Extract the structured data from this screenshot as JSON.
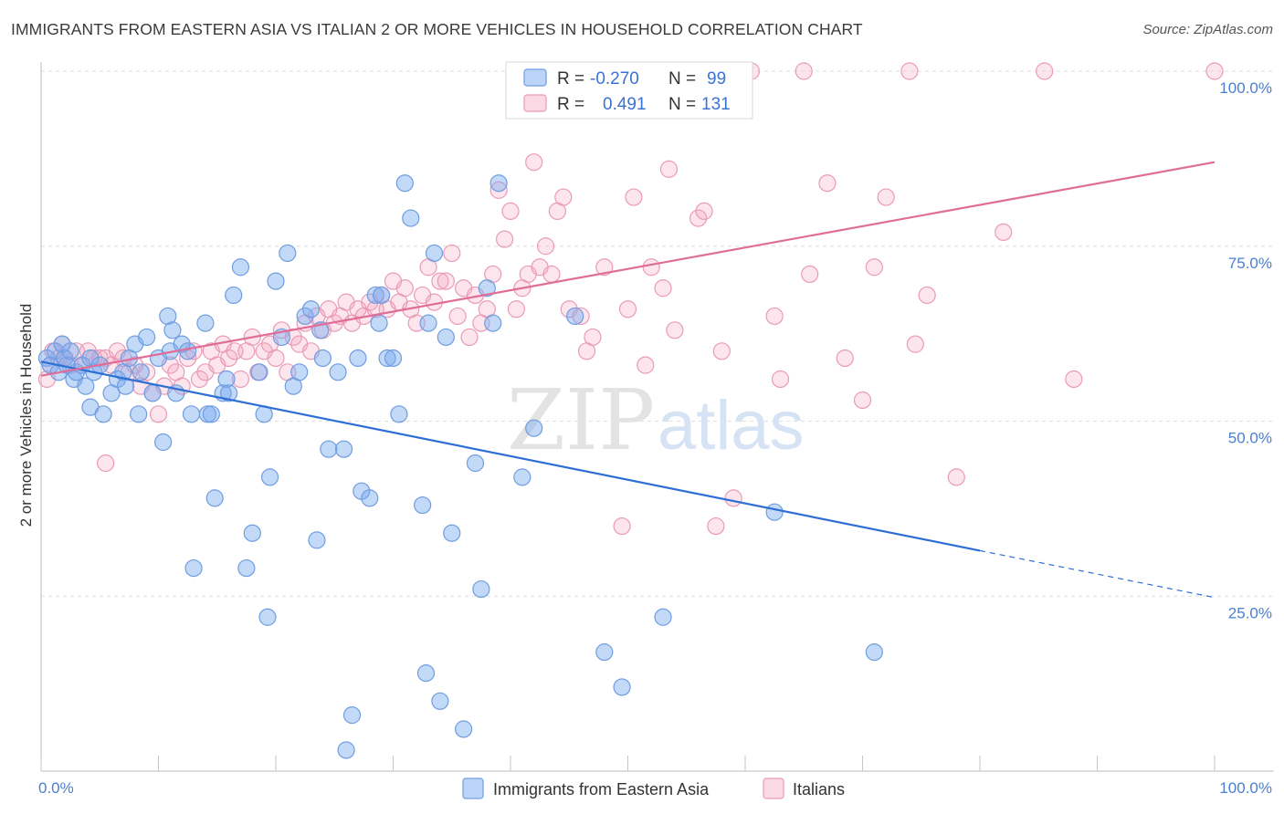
{
  "header": {
    "title": "IMMIGRANTS FROM EASTERN ASIA VS ITALIAN 2 OR MORE VEHICLES IN HOUSEHOLD CORRELATION CHART",
    "source": "Source: ZipAtlas.com"
  },
  "watermark": {
    "zip": "ZIP",
    "atlas": "atlas"
  },
  "legend_stats": [
    {
      "r_label": "R =",
      "r_value": "-0.270",
      "n_label": "N =",
      "n_value": "99",
      "color": "#7aaaf0"
    },
    {
      "r_label": "R =",
      "r_value": "0.491",
      "n_label": "N =",
      "n_value": "131",
      "color": "#f4a0bc"
    }
  ],
  "chart_data": {
    "type": "scatter",
    "ylabel": "2 or more Vehicles in Household",
    "xlim": [
      0,
      100
    ],
    "ylim": [
      0,
      100
    ],
    "x_tick_labels": [
      "0.0%",
      "100.0%"
    ],
    "y_ticks": [
      25,
      50,
      75,
      100
    ],
    "y_tick_labels": [
      "25.0%",
      "50.0%",
      "75.0%",
      "100.0%"
    ],
    "grid": true,
    "legend_position": "bottom-center",
    "series": [
      {
        "name": "Immigrants from Eastern Asia",
        "color": "#7aaaf0",
        "line_color": "#2e6fd4",
        "trend": {
          "x0": 0,
          "y0": 58.5,
          "x1": 80,
          "y1": 31.5,
          "dash_to": 100,
          "dash_y": 24.8
        },
        "points": [
          [
            0.5,
            59
          ],
          [
            0.8,
            58
          ],
          [
            1.2,
            60
          ],
          [
            1.5,
            57
          ],
          [
            1.8,
            61
          ],
          [
            2.0,
            59
          ],
          [
            2.2,
            58
          ],
          [
            2.5,
            60
          ],
          [
            2.8,
            56
          ],
          [
            3.0,
            57
          ],
          [
            3.5,
            58
          ],
          [
            3.8,
            55
          ],
          [
            4.2,
            59
          ],
          [
            4.5,
            57
          ],
          [
            5.0,
            58
          ],
          [
            4.2,
            52
          ],
          [
            5.3,
            51
          ],
          [
            6.0,
            54
          ],
          [
            6.5,
            56
          ],
          [
            7.0,
            57
          ],
          [
            7.5,
            59
          ],
          [
            7.2,
            55
          ],
          [
            8.0,
            61
          ],
          [
            8.3,
            51
          ],
          [
            8.5,
            57
          ],
          [
            9.0,
            62
          ],
          [
            9.5,
            54
          ],
          [
            10.0,
            59
          ],
          [
            10.4,
            47
          ],
          [
            10.8,
            65
          ],
          [
            11.2,
            63
          ],
          [
            11.0,
            60
          ],
          [
            11.5,
            54
          ],
          [
            12.0,
            61
          ],
          [
            12.5,
            60
          ],
          [
            12.8,
            51
          ],
          [
            13.0,
            29
          ],
          [
            14.0,
            64
          ],
          [
            14.2,
            51
          ],
          [
            14.5,
            51
          ],
          [
            14.8,
            39
          ],
          [
            15.5,
            54
          ],
          [
            15.8,
            56
          ],
          [
            16.0,
            54
          ],
          [
            16.4,
            68
          ],
          [
            17.0,
            72
          ],
          [
            17.5,
            29
          ],
          [
            18.0,
            34
          ],
          [
            18.6,
            57
          ],
          [
            19.0,
            51
          ],
          [
            19.3,
            22
          ],
          [
            19.5,
            42
          ],
          [
            20.0,
            70
          ],
          [
            20.5,
            62
          ],
          [
            21.0,
            74
          ],
          [
            21.5,
            55
          ],
          [
            22.0,
            57
          ],
          [
            22.5,
            65
          ],
          [
            23.0,
            66
          ],
          [
            23.5,
            33
          ],
          [
            23.8,
            63
          ],
          [
            24.0,
            59
          ],
          [
            24.5,
            46
          ],
          [
            25.3,
            57
          ],
          [
            25.8,
            46
          ],
          [
            26.0,
            3
          ],
          [
            26.5,
            8
          ],
          [
            27.0,
            59
          ],
          [
            27.3,
            40
          ],
          [
            28.0,
            39
          ],
          [
            28.5,
            68
          ],
          [
            28.8,
            64
          ],
          [
            29.0,
            68
          ],
          [
            29.5,
            59
          ],
          [
            30.0,
            59
          ],
          [
            30.5,
            51
          ],
          [
            31.0,
            84
          ],
          [
            31.5,
            79
          ],
          [
            32.5,
            38
          ],
          [
            32.8,
            14
          ],
          [
            33.0,
            64
          ],
          [
            33.5,
            74
          ],
          [
            34.0,
            10
          ],
          [
            34.5,
            62
          ],
          [
            35.0,
            34
          ],
          [
            36.0,
            6
          ],
          [
            37.0,
            44
          ],
          [
            37.5,
            26
          ],
          [
            38.0,
            69
          ],
          [
            38.5,
            64
          ],
          [
            39.0,
            84
          ],
          [
            41.0,
            42
          ],
          [
            42.0,
            49
          ],
          [
            45.5,
            65
          ],
          [
            48.0,
            17
          ],
          [
            49.5,
            12
          ],
          [
            53.0,
            22
          ],
          [
            62.5,
            37
          ],
          [
            71.0,
            17
          ]
        ]
      },
      {
        "name": "Italians",
        "color": "#f4a0bc",
        "line_color": "#e06c98",
        "trend": {
          "x0": 0,
          "y0": 56.5,
          "x1": 100,
          "y1": 87
        },
        "points": [
          [
            0.5,
            56
          ],
          [
            0.8,
            58
          ],
          [
            1.0,
            60
          ],
          [
            1.5,
            59
          ],
          [
            1.8,
            61
          ],
          [
            2.0,
            59
          ],
          [
            2.5,
            58
          ],
          [
            3.0,
            60
          ],
          [
            3.5,
            58
          ],
          [
            4.0,
            60
          ],
          [
            4.5,
            59
          ],
          [
            5.0,
            59
          ],
          [
            5.5,
            59
          ],
          [
            6.0,
            58
          ],
          [
            6.5,
            60
          ],
          [
            7.0,
            59
          ],
          [
            5.5,
            44
          ],
          [
            7.5,
            57
          ],
          [
            8.0,
            58
          ],
          [
            8.5,
            55
          ],
          [
            9.0,
            57
          ],
          [
            9.5,
            54
          ],
          [
            10.0,
            51
          ],
          [
            10.5,
            55
          ],
          [
            11.0,
            58
          ],
          [
            11.5,
            57
          ],
          [
            12.0,
            55
          ],
          [
            12.5,
            59
          ],
          [
            13.0,
            60
          ],
          [
            13.5,
            56
          ],
          [
            14.0,
            57
          ],
          [
            14.5,
            60
          ],
          [
            15.0,
            58
          ],
          [
            15.5,
            61
          ],
          [
            16.0,
            59
          ],
          [
            16.5,
            60
          ],
          [
            17.0,
            56
          ],
          [
            17.5,
            60
          ],
          [
            18.0,
            62
          ],
          [
            18.5,
            57
          ],
          [
            19.0,
            60
          ],
          [
            19.5,
            61
          ],
          [
            20.0,
            59
          ],
          [
            20.5,
            63
          ],
          [
            21.0,
            57
          ],
          [
            21.5,
            62
          ],
          [
            22.0,
            61
          ],
          [
            22.5,
            64
          ],
          [
            23.0,
            60
          ],
          [
            23.5,
            65
          ],
          [
            24.0,
            63
          ],
          [
            24.5,
            66
          ],
          [
            25.0,
            64
          ],
          [
            25.5,
            65
          ],
          [
            26.0,
            67
          ],
          [
            26.5,
            64
          ],
          [
            27.0,
            66
          ],
          [
            27.5,
            65
          ],
          [
            28.0,
            67
          ],
          [
            28.5,
            66
          ],
          [
            29.0,
            68
          ],
          [
            29.5,
            66
          ],
          [
            30.0,
            70
          ],
          [
            30.5,
            67
          ],
          [
            31.0,
            69
          ],
          [
            31.5,
            66
          ],
          [
            32.0,
            64
          ],
          [
            32.5,
            68
          ],
          [
            33.0,
            72
          ],
          [
            33.5,
            67
          ],
          [
            34.0,
            70
          ],
          [
            34.5,
            70
          ],
          [
            35.0,
            74
          ],
          [
            35.5,
            65
          ],
          [
            36.0,
            69
          ],
          [
            36.5,
            62
          ],
          [
            37.0,
            68
          ],
          [
            37.5,
            64
          ],
          [
            38.0,
            66
          ],
          [
            38.5,
            71
          ],
          [
            39.0,
            83
          ],
          [
            39.5,
            76
          ],
          [
            40.0,
            80
          ],
          [
            40.5,
            66
          ],
          [
            41.0,
            69
          ],
          [
            41.5,
            71
          ],
          [
            42.0,
            87
          ],
          [
            42.5,
            72
          ],
          [
            43.0,
            75
          ],
          [
            43.5,
            71
          ],
          [
            44.0,
            80
          ],
          [
            44.5,
            82
          ],
          [
            45.0,
            66
          ],
          [
            45.5,
            100
          ],
          [
            46.0,
            65
          ],
          [
            46.5,
            60
          ],
          [
            47.0,
            62
          ],
          [
            48.0,
            72
          ],
          [
            49.5,
            35
          ],
          [
            50.0,
            66
          ],
          [
            50.5,
            82
          ],
          [
            51.0,
            96
          ],
          [
            51.5,
            58
          ],
          [
            52.0,
            72
          ],
          [
            53.0,
            69
          ],
          [
            53.5,
            86
          ],
          [
            54.0,
            63
          ],
          [
            55.0,
            95
          ],
          [
            56.0,
            79
          ],
          [
            56.5,
            80
          ],
          [
            57.5,
            35
          ],
          [
            58.0,
            60
          ],
          [
            59.0,
            39
          ],
          [
            60.5,
            100
          ],
          [
            62.5,
            65
          ],
          [
            63.0,
            56
          ],
          [
            65.0,
            100
          ],
          [
            65.5,
            71
          ],
          [
            67.0,
            84
          ],
          [
            68.5,
            59
          ],
          [
            70.0,
            53
          ],
          [
            71.0,
            72
          ],
          [
            72.0,
            82
          ],
          [
            74.0,
            100
          ],
          [
            74.5,
            61
          ],
          [
            75.5,
            68
          ],
          [
            78.0,
            42
          ],
          [
            82.0,
            77
          ],
          [
            85.5,
            100
          ],
          [
            88.0,
            56
          ],
          [
            100.0,
            100
          ]
        ]
      }
    ]
  }
}
